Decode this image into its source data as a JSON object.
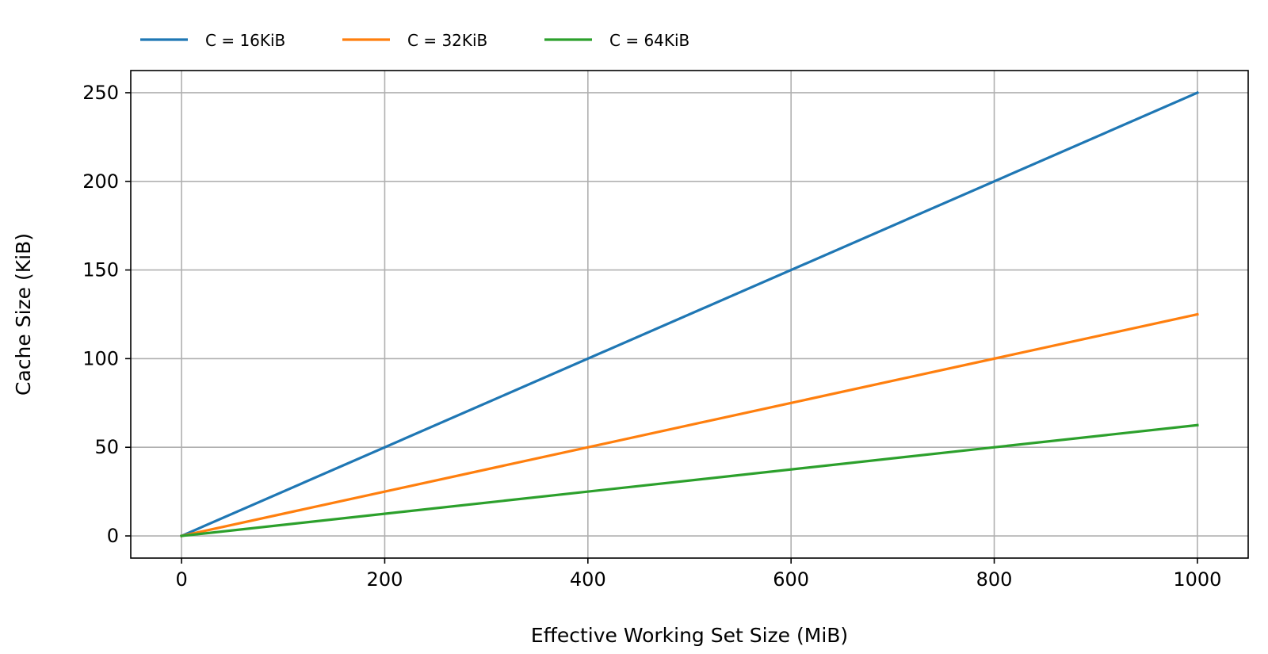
{
  "chart_data": {
    "type": "line",
    "xlabel": "Effective Working Set Size (MiB)",
    "ylabel": "Cache Size (KiB)",
    "xlim": [
      -50,
      1050
    ],
    "ylim": [
      -12.5,
      262.5
    ],
    "xticks": [
      0,
      200,
      400,
      600,
      800,
      1000
    ],
    "yticks": [
      0,
      50,
      100,
      150,
      200,
      250
    ],
    "xtick_labels": [
      "0",
      "200",
      "400",
      "600",
      "800",
      "1000"
    ],
    "ytick_labels": [
      "0",
      "50",
      "100",
      "150",
      "200",
      "250"
    ],
    "grid": true,
    "legend_position": "top-left, above plot",
    "x": [
      0,
      1000
    ],
    "series": [
      {
        "name": "C = 16KiB",
        "color": "#1f77b4",
        "values": [
          0,
          250
        ]
      },
      {
        "name": "C = 32KiB",
        "color": "#ff7f0e",
        "values": [
          0,
          125
        ]
      },
      {
        "name": "C = 64KiB",
        "color": "#2ca02c",
        "values": [
          0,
          62.5
        ]
      }
    ]
  }
}
